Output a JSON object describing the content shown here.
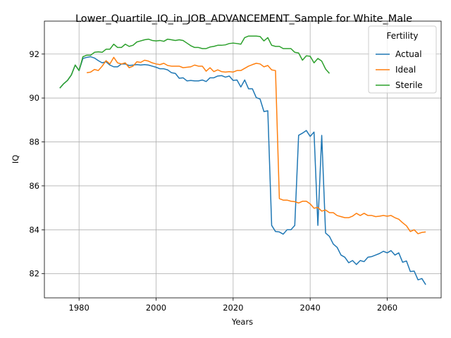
{
  "chart_data": {
    "type": "line",
    "title": "Lower_Quartile_IQ_in_JOB_ADVANCEMENT_Sample for White_Male",
    "xlabel": "Years",
    "ylabel": "IQ",
    "xlim": [
      1971,
      2074
    ],
    "ylim": [
      80.9,
      93.5
    ],
    "xticks": [
      1980,
      2000,
      2020,
      2040,
      2060
    ],
    "yticks": [
      82,
      84,
      86,
      88,
      90,
      92
    ],
    "grid": true,
    "legend": {
      "title": "Fertility",
      "placement": "top-right"
    },
    "series": [
      {
        "name": "Actual",
        "color": "#1f77b4",
        "x": [
          1975,
          1976,
          1977,
          1978,
          1979,
          1980,
          1981,
          1982,
          1983,
          1984,
          1985,
          1986,
          1987,
          1988,
          1989,
          1990,
          1991,
          1992,
          1993,
          1994,
          1995,
          1996,
          1997,
          1998,
          1999,
          2000,
          2001,
          2002,
          2003,
          2004,
          2005,
          2006,
          2007,
          2008,
          2009,
          2010,
          2011,
          2012,
          2013,
          2014,
          2015,
          2016,
          2017,
          2018,
          2019,
          2020,
          2021,
          2022,
          2023,
          2024,
          2025,
          2026,
          2027,
          2028,
          2029,
          2030,
          2031,
          2032,
          2033,
          2034,
          2035,
          2036,
          2037,
          2038,
          2039,
          2040,
          2041,
          2042,
          2043,
          2044,
          2045,
          2046,
          2047,
          2048,
          2049,
          2050,
          2051,
          2052,
          2053,
          2054,
          2055,
          2056,
          2057,
          2058,
          2059,
          2060,
          2061,
          2062,
          2063,
          2064,
          2065,
          2066,
          2067,
          2068,
          2069,
          2070
        ],
        "y": [
          90.45,
          90.65,
          90.8,
          91.05,
          91.5,
          91.25,
          91.8,
          91.85,
          91.88,
          91.82,
          91.7,
          91.6,
          91.65,
          91.5,
          91.42,
          91.42,
          91.55,
          91.55,
          91.48,
          91.5,
          91.52,
          91.5,
          91.52,
          91.5,
          91.45,
          91.4,
          91.33,
          91.33,
          91.28,
          91.15,
          91.12,
          90.9,
          90.92,
          90.78,
          90.8,
          90.78,
          90.78,
          90.82,
          90.75,
          90.92,
          90.92,
          91.0,
          91.02,
          90.95,
          91.0,
          90.8,
          90.82,
          90.5,
          90.82,
          90.42,
          90.42,
          90.02,
          89.95,
          89.38,
          89.42,
          84.2,
          83.92,
          83.9,
          83.8,
          84.0,
          84.0,
          84.2,
          88.3,
          88.4,
          88.52,
          88.25,
          88.45,
          84.2,
          88.3,
          83.85,
          83.7,
          83.35,
          83.2,
          82.85,
          82.75,
          82.5,
          82.6,
          82.42,
          82.6,
          82.55,
          82.75,
          82.78,
          82.85,
          82.92,
          83.02,
          82.95,
          83.05,
          82.85,
          82.95,
          82.52,
          82.58,
          82.1,
          82.12,
          81.72,
          81.78,
          81.5
        ]
      },
      {
        "name": "Ideal",
        "color": "#ff7f0e",
        "x": [
          1982,
          1983,
          1984,
          1985,
          1986,
          1987,
          1988,
          1989,
          1990,
          1991,
          1992,
          1993,
          1994,
          1995,
          1996,
          1997,
          1998,
          1999,
          2000,
          2001,
          2002,
          2003,
          2004,
          2005,
          2006,
          2007,
          2008,
          2009,
          2010,
          2011,
          2012,
          2013,
          2014,
          2015,
          2016,
          2017,
          2018,
          2019,
          2020,
          2021,
          2022,
          2023,
          2024,
          2025,
          2026,
          2027,
          2028,
          2029,
          2030,
          2031,
          2032,
          2033,
          2034,
          2035,
          2036,
          2037,
          2038,
          2039,
          2040,
          2041,
          2042,
          2043,
          2044,
          2045,
          2046,
          2047,
          2048,
          2049,
          2050,
          2051,
          2052,
          2053,
          2054,
          2055,
          2056,
          2057,
          2058,
          2059,
          2060,
          2061,
          2062,
          2063,
          2064,
          2065,
          2066,
          2067,
          2068,
          2069,
          2070
        ],
        "y": [
          91.15,
          91.18,
          91.3,
          91.25,
          91.45,
          91.7,
          91.55,
          91.85,
          91.6,
          91.55,
          91.6,
          91.38,
          91.45,
          91.65,
          91.62,
          91.72,
          91.68,
          91.6,
          91.55,
          91.52,
          91.58,
          91.48,
          91.45,
          91.45,
          91.45,
          91.38,
          91.4,
          91.42,
          91.5,
          91.45,
          91.45,
          91.22,
          91.38,
          91.2,
          91.28,
          91.2,
          91.18,
          91.2,
          91.18,
          91.25,
          91.25,
          91.35,
          91.45,
          91.52,
          91.58,
          91.55,
          91.42,
          91.48,
          91.28,
          91.25,
          85.42,
          85.35,
          85.35,
          85.3,
          85.28,
          85.22,
          85.3,
          85.3,
          85.18,
          84.98,
          85.02,
          84.85,
          84.9,
          84.78,
          84.78,
          84.65,
          84.6,
          84.55,
          84.55,
          84.62,
          84.75,
          84.65,
          84.75,
          84.65,
          84.65,
          84.6,
          84.62,
          84.65,
          84.62,
          84.65,
          84.55,
          84.48,
          84.32,
          84.18,
          83.92,
          84.0,
          83.82,
          83.88,
          83.9
        ]
      },
      {
        "name": "Sterile",
        "color": "#2ca02c",
        "x": [
          1975,
          1976,
          1977,
          1978,
          1979,
          1980,
          1981,
          1982,
          1983,
          1984,
          1985,
          1986,
          1987,
          1988,
          1989,
          1990,
          1991,
          1992,
          1993,
          1994,
          1995,
          1996,
          1997,
          1998,
          1999,
          2000,
          2001,
          2002,
          2003,
          2004,
          2005,
          2006,
          2007,
          2008,
          2009,
          2010,
          2011,
          2012,
          2013,
          2014,
          2015,
          2016,
          2017,
          2018,
          2019,
          2020,
          2021,
          2022,
          2023,
          2024,
          2025,
          2026,
          2027,
          2028,
          2029,
          2030,
          2031,
          2032,
          2033,
          2034,
          2035,
          2036,
          2037,
          2038,
          2039,
          2040,
          2041,
          2042,
          2043,
          2044,
          2045
        ],
        "y": [
          90.45,
          90.65,
          90.8,
          91.05,
          91.5,
          91.25,
          91.88,
          91.95,
          91.95,
          92.08,
          92.1,
          92.08,
          92.22,
          92.22,
          92.45,
          92.3,
          92.3,
          92.45,
          92.35,
          92.4,
          92.55,
          92.6,
          92.65,
          92.68,
          92.62,
          92.6,
          92.62,
          92.58,
          92.68,
          92.65,
          92.62,
          92.65,
          92.62,
          92.5,
          92.38,
          92.3,
          92.3,
          92.25,
          92.25,
          92.32,
          92.35,
          92.4,
          92.4,
          92.42,
          92.48,
          92.5,
          92.48,
          92.45,
          92.75,
          92.82,
          92.82,
          92.82,
          92.8,
          92.6,
          92.75,
          92.4,
          92.35,
          92.35,
          92.25,
          92.25,
          92.25,
          92.08,
          92.05,
          91.72,
          91.92,
          91.9,
          91.6,
          91.8,
          91.68,
          91.32,
          91.12
        ]
      }
    ]
  }
}
